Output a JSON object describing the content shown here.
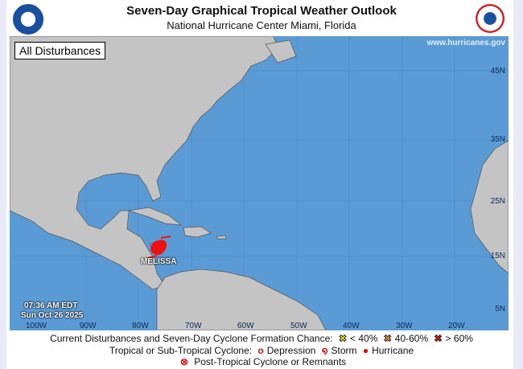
{
  "header": {
    "title": "Seven-Day Graphical Tropical Weather Outlook",
    "subtitle": "National Hurricane Center  Miami, Florida"
  },
  "map": {
    "view_label": "All Disturbances",
    "website": "www.hurricanes.gov",
    "lat_labels": [
      "45N",
      "35N",
      "25N",
      "15N",
      "5N"
    ],
    "lon_labels": [
      "100W",
      "90W",
      "80W",
      "70W",
      "60W",
      "50W",
      "40W",
      "30W",
      "20W"
    ],
    "timestamp": {
      "time": "07:36 AM EDT",
      "date": "Sun Oct 26 2025"
    },
    "systems": [
      {
        "name": "MELISSA",
        "type": "hurricane",
        "color": "#ee1111"
      }
    ],
    "colors": {
      "ocean": "#5b9bd5",
      "land": "#c4c4c4",
      "borders": "#555555"
    }
  },
  "legend": {
    "row1_label": "Current Disturbances and Seven-Day Cyclone Formation Chance:",
    "chances": [
      {
        "label": "< 40%",
        "color": "#f5e60a"
      },
      {
        "label": "40-60%",
        "color": "#f28c1e"
      },
      {
        "label": "> 60%",
        "color": "#dd1111"
      }
    ],
    "row2_label": "Tropical or Sub-Tropical Cyclone:",
    "cyclones": [
      {
        "label": "Depression",
        "icon": "depression-icon"
      },
      {
        "label": "Storm",
        "icon": "storm-icon"
      },
      {
        "label": "Hurricane",
        "icon": "hurricane-icon"
      }
    ],
    "row3_label": "Post-Tropical Cyclone or Remnants"
  }
}
